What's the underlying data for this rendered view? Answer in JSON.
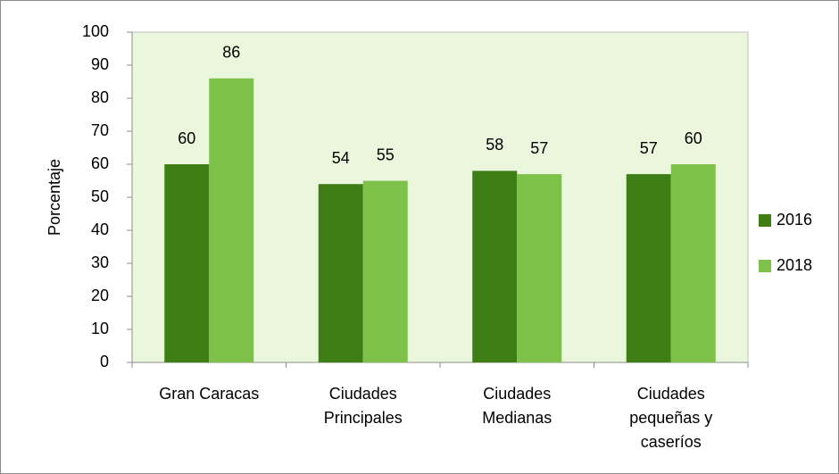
{
  "chart_data": {
    "type": "bar",
    "y_label": "Porcentaje",
    "categories": [
      "Gran Caracas",
      "Ciudades Principales",
      "Ciudades Medianas",
      "Ciudades pequeñas y caseríos"
    ],
    "series": [
      {
        "name": "2016",
        "color": "#3f7e14",
        "values": [
          60,
          54,
          58,
          57
        ]
      },
      {
        "name": "2018",
        "color": "#7dc14b",
        "values": [
          86,
          55,
          57,
          60
        ]
      }
    ],
    "ylim": [
      0,
      100
    ],
    "yticks": [
      0,
      10,
      20,
      30,
      40,
      50,
      60,
      70,
      80,
      90,
      100
    ],
    "legend": "right",
    "background": "#ebf7dc"
  }
}
